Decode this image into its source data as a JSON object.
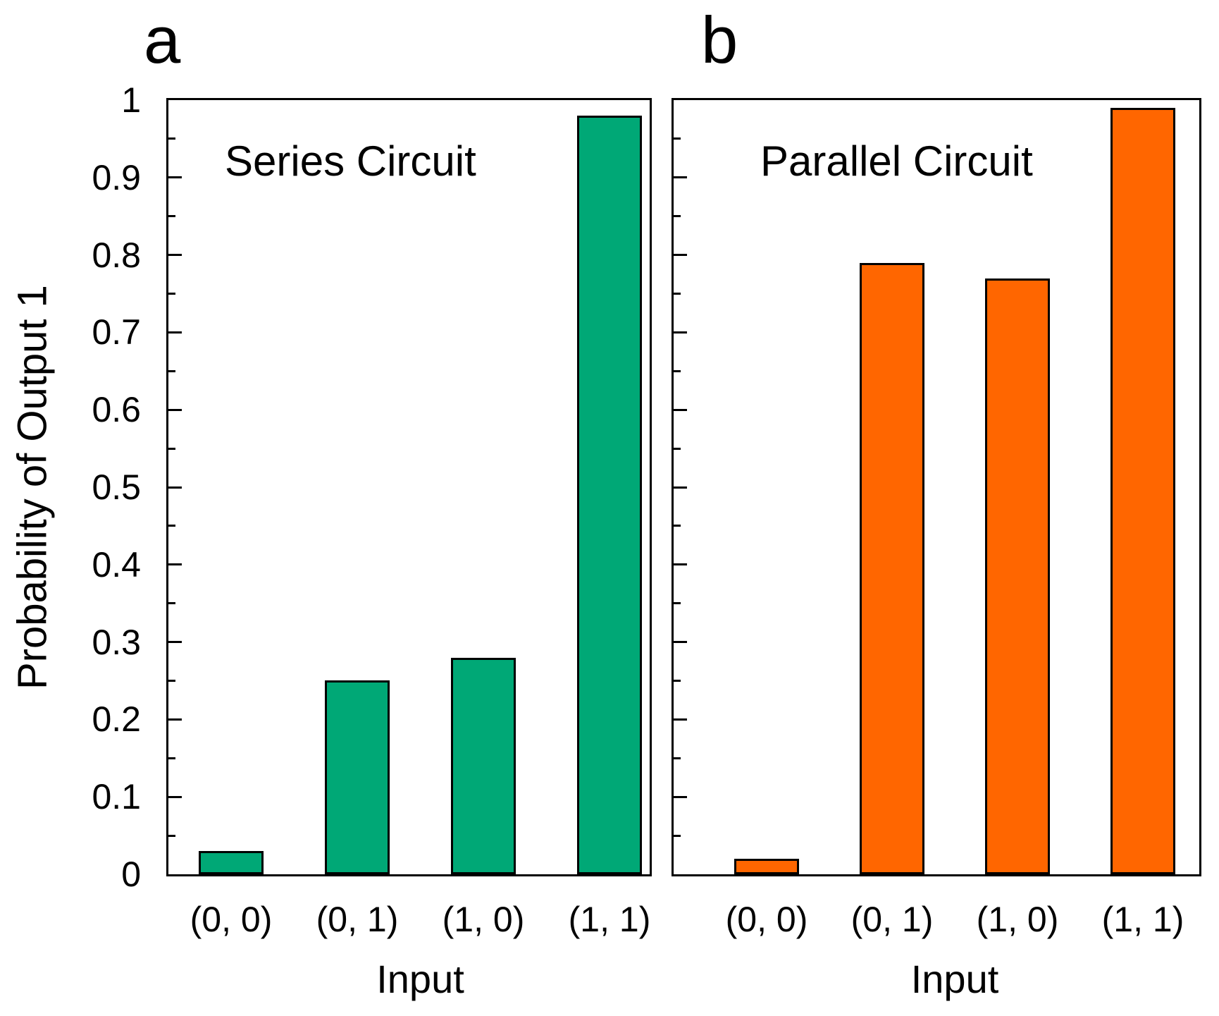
{
  "figure": {
    "panel_a_label": "a",
    "panel_b_label": "b",
    "y_axis_title": "Probability of Output 1",
    "x_axis_title": "Input",
    "y_tick_labels": [
      "0",
      "0.1",
      "0.2",
      "0.3",
      "0.4",
      "0.5",
      "0.6",
      "0.7",
      "0.8",
      "0.9",
      "1"
    ]
  },
  "chart_data": [
    {
      "type": "bar",
      "panel": "a",
      "title": "Series Circuit",
      "categories": [
        "(0, 0)",
        "(0, 1)",
        "(1, 0)",
        "(1, 1)"
      ],
      "values": [
        0.03,
        0.25,
        0.28,
        0.98
      ],
      "xlabel": "Input",
      "ylabel": "Probability of Output 1",
      "ylim": [
        0,
        1
      ],
      "y_major_tick_step": 0.1,
      "y_minor_tick_step": 0.05,
      "tick_direction": "in",
      "grid": "off",
      "legend": "none",
      "bar_color": "#00A876",
      "bar_border_color": "#000000"
    },
    {
      "type": "bar",
      "panel": "b",
      "title": "Parallel Circuit",
      "categories": [
        "(0, 0)",
        "(0, 1)",
        "(1, 0)",
        "(1, 1)"
      ],
      "values": [
        0.02,
        0.79,
        0.77,
        0.99
      ],
      "xlabel": "Input",
      "ylabel": "",
      "ylim": [
        0,
        1
      ],
      "y_major_tick_step": 0.1,
      "y_minor_tick_step": 0.05,
      "tick_direction": "in",
      "grid": "off",
      "legend": "none",
      "bar_color": "#FF6600",
      "bar_border_color": "#000000"
    }
  ]
}
